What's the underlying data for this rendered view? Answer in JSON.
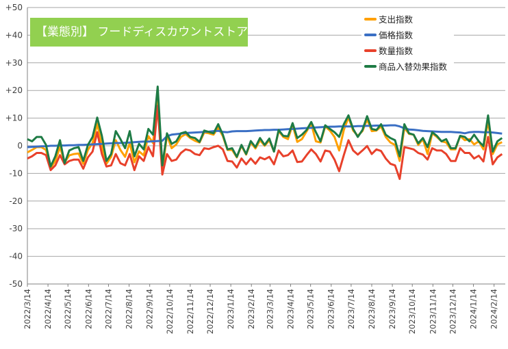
{
  "chart_data": {
    "type": "line",
    "title": "【業態別】 フードディスカウントストア",
    "xlabel": "",
    "ylabel": "",
    "ylim": [
      -50,
      50
    ],
    "yticks": [
      "+50",
      "+40",
      "+30",
      "+20",
      "+10",
      "0",
      "-10",
      "-20",
      "-30",
      "-40",
      "-50"
    ],
    "ytick_values": [
      50,
      40,
      30,
      20,
      10,
      0,
      -10,
      -20,
      -30,
      -40,
      -50
    ],
    "xticks": [
      "2022/3/14",
      "2022/4/14",
      "2022/5/14",
      "2022/6/14",
      "2022/7/14",
      "2022/8/14",
      "2022/9/14",
      "2022/10/14",
      "2022/11/14",
      "2022/12/14",
      "2023/1/14",
      "2023/2/14",
      "2023/3/14",
      "2023/4/14",
      "2023/5/14",
      "2023/6/14",
      "2023/7/14",
      "2023/8/14",
      "2023/9/14",
      "2023/10/14",
      "2023/11/14",
      "2023/12/14",
      "2024/1/14",
      "2024/2/14"
    ],
    "grid": true,
    "legend_position": "top-right",
    "series": [
      {
        "name": "支出指数",
        "color": "#ffa000",
        "values": [
          -2.4,
          -1.5,
          -0.5,
          -0.5,
          -1.5,
          -8,
          -5.5,
          -0.5,
          -6,
          -3.5,
          -3,
          -2.8,
          -6.5,
          -1.5,
          1,
          8,
          0,
          -6.5,
          -4,
          2,
          -1.5,
          -4,
          1,
          -6,
          -2,
          -3.5,
          3.5,
          1,
          17,
          -9,
          3.8,
          -0.9,
          0.5,
          3.2,
          4.2,
          2.8,
          1.8,
          1.2,
          4.8,
          4.5,
          4,
          6.5,
          3.5,
          -1.5,
          -1.5,
          -4.2,
          0,
          -3.2,
          1.2,
          -1,
          2,
          0,
          2,
          -2.1,
          5.3,
          3.2,
          2.4,
          7.5,
          1.4,
          2.4,
          5.2,
          8,
          1.6,
          1.2,
          7,
          5.5,
          3.2,
          -1.7,
          5.7,
          10.3,
          5.5,
          3.6,
          5.3,
          9.5,
          5.3,
          5.5,
          7,
          3.2,
          1.2,
          0.3,
          -5.5,
          6.5,
          4.3,
          4,
          0.3,
          2.4,
          -3,
          4.5,
          3.2,
          1.6,
          1.2,
          -1.3,
          -1.3,
          3.6,
          2,
          2.4,
          0.5,
          1.6,
          -1.3,
          9,
          -3,
          0.5,
          1.3
        ]
      },
      {
        "name": "価格指数",
        "color": "#3a6fc4",
        "values": [
          -0.5,
          -0.4,
          -0.3,
          -0.2,
          -0.2,
          0,
          0,
          0.1,
          0.1,
          0.2,
          0.2,
          0.3,
          0.3,
          0.4,
          0.5,
          0.6,
          0.7,
          0.8,
          0.9,
          1,
          1,
          1.1,
          1.2,
          1.3,
          1.4,
          1.5,
          1.5,
          1.6,
          1.7,
          1.8,
          3.5,
          4,
          4.2,
          4.4,
          4.6,
          4.7,
          4.8,
          4.9,
          5,
          5.1,
          5.3,
          5.4,
          5,
          4.9,
          5.2,
          5.3,
          5.3,
          5.3,
          5.4,
          5.5,
          5.6,
          5.7,
          5.7,
          5.8,
          5.8,
          5.9,
          6,
          6.1,
          6.2,
          6.3,
          6.4,
          6.5,
          6.6,
          6.7,
          6.8,
          6.9,
          6.9,
          7,
          7,
          7,
          7,
          7.1,
          7.1,
          7.2,
          7.2,
          7.3,
          7.3,
          7.3,
          7.4,
          7.4,
          7,
          6.3,
          5.9,
          5.8,
          5.6,
          5.4,
          5.3,
          5.2,
          5.1,
          5,
          5,
          5,
          4.9,
          4.8,
          4.5,
          4.9,
          5,
          5,
          4.9,
          4.9,
          4.8,
          4.6,
          4.4
        ]
      },
      {
        "name": "数量指数",
        "color": "#e8412b",
        "values": [
          -4.6,
          -3.8,
          -2.6,
          -2.6,
          -3.4,
          -8.8,
          -7.1,
          -3.4,
          -6.7,
          -5.5,
          -5,
          -5,
          -8.3,
          -4.2,
          -2.1,
          4.9,
          -3,
          -7.5,
          -7.1,
          -3,
          -6.3,
          -7.1,
          -3,
          -8.8,
          -3.8,
          -5.5,
          -0.5,
          -3.8,
          14.4,
          -10.4,
          -3,
          -5.5,
          -5,
          -2.6,
          -1.3,
          -1.7,
          -3,
          -3.4,
          -0.9,
          -1.2,
          -0.5,
          0,
          -1.3,
          -5.5,
          -5.7,
          -7.9,
          -4.6,
          -6.7,
          -4.6,
          -6.5,
          -4.2,
          -4.9,
          -4,
          -6.7,
          -1.7,
          -3.8,
          -3.4,
          -1.7,
          -5.9,
          -5.7,
          -3.4,
          -1.3,
          -3,
          -5.7,
          -1.7,
          -2.1,
          -5,
          -9.2,
          -3.4,
          2,
          -1.7,
          -3.2,
          -1.7,
          -0.1,
          -3,
          -1.3,
          -1.9,
          -4.6,
          -6.5,
          -7.1,
          -12,
          -0.5,
          -0.9,
          -1.3,
          -2.6,
          -3.2,
          -5,
          -0.9,
          -1.7,
          -1.7,
          -3,
          -5.5,
          -5.5,
          -0.9,
          -2.6,
          -2.6,
          -4.6,
          -3.6,
          -5.7,
          3.2,
          -6.7,
          -4.2,
          -3
        ]
      },
      {
        "name": "商品入替効果指数",
        "color": "#1e7b45",
        "values": [
          2.4,
          1.6,
          3.2,
          3.2,
          0.3,
          -7.5,
          -3.8,
          2,
          -6.3,
          -1.7,
          -0.9,
          -0.5,
          -5.5,
          0.3,
          3.2,
          10.2,
          3.6,
          -5.5,
          -3,
          5.3,
          2.4,
          -0.9,
          5.3,
          -3.8,
          0.7,
          -1.3,
          6.1,
          4,
          21.4,
          -7.1,
          4.5,
          0.7,
          1.6,
          4.5,
          5,
          3.2,
          2.8,
          1.4,
          5.5,
          5,
          4.5,
          7.8,
          4,
          -1.3,
          -0.9,
          -4,
          0.3,
          -3,
          1.7,
          -0.5,
          2.8,
          0.3,
          2.6,
          -2.1,
          5.7,
          3.6,
          3.4,
          8.2,
          2.8,
          4,
          5.7,
          8.6,
          4.9,
          1.6,
          7.4,
          6.1,
          4.9,
          3.2,
          7.8,
          11,
          6.1,
          3.2,
          5.7,
          10.7,
          6.1,
          5.7,
          7.8,
          4,
          2.8,
          2,
          -3.8,
          7.8,
          4.5,
          4,
          0.9,
          2.8,
          -0.5,
          4.9,
          3.6,
          1.6,
          2.4,
          -0.9,
          -0.9,
          3.6,
          3.2,
          1.6,
          4,
          1.6,
          -0.1,
          11,
          -2.1,
          1.6,
          2.8
        ]
      }
    ]
  }
}
